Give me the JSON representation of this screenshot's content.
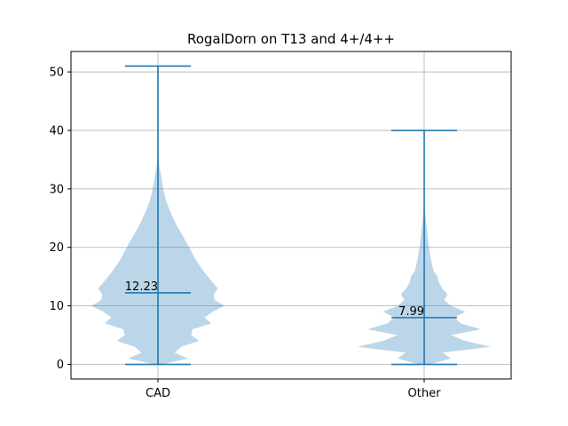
{
  "chart_data": {
    "type": "violin",
    "title": "RogalDorn on T13 and 4+/4++",
    "xlabel": "",
    "ylabel": "",
    "categories": [
      "CAD",
      "Other"
    ],
    "ylim": [
      -2.5,
      53.5
    ],
    "yticks": [
      0,
      10,
      20,
      30,
      40,
      50
    ],
    "grid": true,
    "colors": {
      "body": "#1f77b4",
      "body_alpha": 0.3,
      "lines": "#1f77b4"
    },
    "series": [
      {
        "name": "CAD",
        "min": 0,
        "max": 51,
        "mean": 12.23,
        "mean_label": "12.23",
        "density_profile": [
          [
            0,
            0.05
          ],
          [
            1,
            0.45
          ],
          [
            2,
            0.25
          ],
          [
            3,
            0.35
          ],
          [
            4,
            0.62
          ],
          [
            5,
            0.5
          ],
          [
            6,
            0.52
          ],
          [
            7,
            0.8
          ],
          [
            8,
            0.7
          ],
          [
            9,
            0.82
          ],
          [
            10,
            1.0
          ],
          [
            11,
            0.85
          ],
          [
            12,
            0.84
          ],
          [
            13,
            0.9
          ],
          [
            14,
            0.82
          ],
          [
            16,
            0.68
          ],
          [
            18,
            0.56
          ],
          [
            20,
            0.47
          ],
          [
            22,
            0.37
          ],
          [
            24,
            0.27
          ],
          [
            26,
            0.19
          ],
          [
            28,
            0.12
          ],
          [
            30,
            0.08
          ],
          [
            32,
            0.05
          ],
          [
            34,
            0.02
          ],
          [
            36,
            0.005
          ],
          [
            40,
            0.002
          ],
          [
            51,
            0.0
          ]
        ]
      },
      {
        "name": "Other",
        "min": 0,
        "max": 40,
        "mean": 7.99,
        "mean_label": "7.99",
        "density_profile": [
          [
            0,
            0.08
          ],
          [
            1,
            0.4
          ],
          [
            2,
            0.28
          ],
          [
            3,
            1.0
          ],
          [
            4,
            0.62
          ],
          [
            5,
            0.4
          ],
          [
            6,
            0.85
          ],
          [
            7,
            0.55
          ],
          [
            8,
            0.45
          ],
          [
            9,
            0.62
          ],
          [
            10,
            0.4
          ],
          [
            11,
            0.3
          ],
          [
            12,
            0.35
          ],
          [
            13,
            0.27
          ],
          [
            14,
            0.22
          ],
          [
            15,
            0.2
          ],
          [
            16,
            0.14
          ],
          [
            18,
            0.1
          ],
          [
            20,
            0.07
          ],
          [
            22,
            0.05
          ],
          [
            24,
            0.03
          ],
          [
            26,
            0.012
          ],
          [
            28,
            0.004
          ],
          [
            30,
            0.002
          ],
          [
            40,
            0.0
          ]
        ]
      }
    ]
  }
}
